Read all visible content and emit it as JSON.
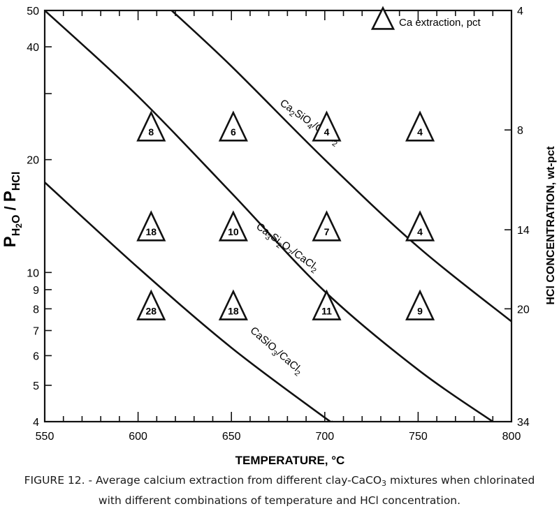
{
  "chart_data": {
    "type": "line",
    "title": "",
    "xlabel": "TEMPERATURE, °C",
    "xlim": [
      550,
      800
    ],
    "x_ticks": [
      "550",
      "600",
      "650",
      "700",
      "750",
      "800"
    ],
    "ylabel_left": {
      "base1": "P",
      "sub1": "H",
      "sub1b": "2",
      "sub1c": "O",
      "sep": " / ",
      "base2": "P",
      "sub2": "HCl"
    },
    "ylim_left": [
      4,
      50
    ],
    "y_scale": "log",
    "y_ticks_left": [
      "4",
      "5",
      "6",
      "7",
      "8",
      "9",
      "10",
      "20",
      "40",
      "50"
    ],
    "ylabel_right": "HCl CONCENTRATION, wt-pct",
    "y_ticks_right": [
      {
        "label": "4",
        "ratio": 50
      },
      {
        "label": "8",
        "ratio": 24
      },
      {
        "label": "14",
        "ratio": 13
      },
      {
        "label": "20",
        "ratio": 8
      },
      {
        "label": "34",
        "ratio": 4
      }
    ],
    "series": [
      {
        "name": "CaSiO3/CaCl2",
        "label_parts": [
          [
            "CaSiO",
            false
          ],
          [
            "3",
            true
          ],
          [
            "/CaCl",
            false
          ],
          [
            "2",
            true
          ]
        ],
        "label_at": [
          673,
          6.1
        ],
        "label_angle": 41,
        "points": [
          [
            550,
            17.4
          ],
          [
            600,
            10.3
          ],
          [
            650,
            6.3
          ],
          [
            700,
            4.1
          ],
          [
            704,
            4.0
          ]
        ]
      },
      {
        "name": "Ca3Si2O7/CaCl2",
        "label_parts": [
          [
            "Ca",
            false
          ],
          [
            "3",
            true
          ],
          [
            "Si",
            false
          ],
          [
            "2",
            true
          ],
          [
            "O",
            false
          ],
          [
            "7",
            true
          ],
          [
            "/CaCl",
            false
          ],
          [
            "2",
            true
          ]
        ],
        "label_at": [
          679,
          11.5
        ],
        "label_angle": 36,
        "points": [
          [
            550,
            50
          ],
          [
            600,
            29.5
          ],
          [
            650,
            16.3
          ],
          [
            700,
            8.9
          ],
          [
            750,
            5.5
          ],
          [
            790,
            4.0
          ]
        ]
      },
      {
        "name": "Ca2SiO4/CaCl2",
        "label_parts": [
          [
            "Ca",
            false
          ],
          [
            "2",
            true
          ],
          [
            "SiO",
            false
          ],
          [
            "4",
            true
          ],
          [
            "/CaCl",
            false
          ],
          [
            "2",
            true
          ]
        ],
        "label_at": [
          691,
          24.8
        ],
        "label_angle": 35,
        "points": [
          [
            618,
            50
          ],
          [
            650,
            35.5
          ],
          [
            700,
            20.0
          ],
          [
            750,
            11.7
          ],
          [
            800,
            7.4
          ]
        ]
      }
    ],
    "annotations": [
      {
        "x": 607,
        "y": 24,
        "value": "8"
      },
      {
        "x": 651,
        "y": 24,
        "value": "6"
      },
      {
        "x": 701,
        "y": 24,
        "value": "4"
      },
      {
        "x": 751,
        "y": 24,
        "value": "4"
      },
      {
        "x": 607,
        "y": 13,
        "value": "18"
      },
      {
        "x": 651,
        "y": 13,
        "value": "10"
      },
      {
        "x": 701,
        "y": 13,
        "value": "7"
      },
      {
        "x": 751,
        "y": 13,
        "value": "4"
      },
      {
        "x": 607,
        "y": 8,
        "value": "28"
      },
      {
        "x": 651,
        "y": 8,
        "value": "18"
      },
      {
        "x": 701,
        "y": 8,
        "value": "11"
      },
      {
        "x": 751,
        "y": 8,
        "value": "9"
      }
    ],
    "legend": {
      "label": "Ca extraction, pct",
      "placement": "top-right"
    }
  },
  "caption": {
    "line1_a": "FIGURE 12. - Average calcium extraction from different clay-CaCO",
    "line1_sub": "3",
    "line1_b": " mixtures when chlorinated",
    "line2": "with different combinations of temperature and HCl concentration."
  }
}
